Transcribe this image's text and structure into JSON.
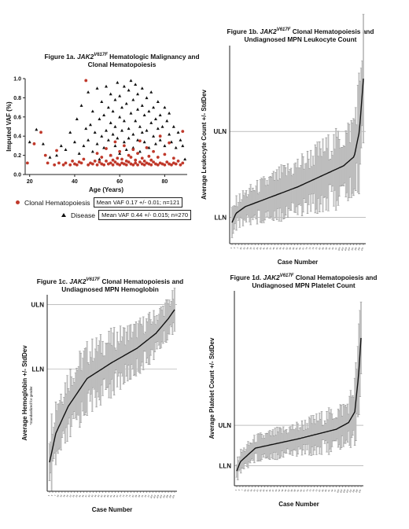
{
  "figures": {
    "fig1a": {
      "title_prefix": "Figure 1a. ",
      "gene": "JAK2",
      "variant": "V617F",
      "title_rest": " Hematologic Malignancy and Clonal Hematopoiesis"
    },
    "fig1b": {
      "title_prefix": "Figure 1b. ",
      "gene": "JAK2",
      "variant": "V617F",
      "title_rest": " Clonal Hematopoiesis and Undiagnosed MPN Leukocyte Count"
    },
    "fig1c": {
      "title_prefix": "Figure 1c. ",
      "gene": "JAK2",
      "variant": "V617F",
      "title_rest": " Clonal Hematopoiesis and Undiagnosed MPN Hemoglobin"
    },
    "fig1d": {
      "title_prefix": "Figure 1d. ",
      "gene": "JAK2",
      "variant": "V617F",
      "title_rest": " Clonal Hematopoiesis and Undiagnosed MPN Platelet Count"
    }
  },
  "legend": {
    "clonal": {
      "label": "Clonal Hematopoiesis",
      "stats": "Mean VAF 0.17 +/- 0.01; n=121"
    },
    "disease": {
      "label": "Disease",
      "stats": "Mean VAF 0.44 +/- 0.015; n=270"
    }
  },
  "colors": {
    "clonal": "#c0392b",
    "disease": "#111111",
    "bar": "#bdbdbd",
    "line": "#111111"
  },
  "chart_data": [
    {
      "id": "fig1a",
      "type": "scatter",
      "xlabel": "Age (Years)",
      "ylabel": "Imputed VAF (%)",
      "xlim": [
        18,
        90
      ],
      "ylim": [
        0,
        1.0
      ],
      "xticks": [
        20,
        40,
        60,
        80
      ],
      "yticks": [
        "0.0",
        "0.2",
        "0.4",
        "0.6",
        "0.8",
        "1.0"
      ],
      "series": [
        {
          "name": "Clonal Hematopoiesis",
          "points": [
            [
              19,
              0.12
            ],
            [
              22,
              0.32
            ],
            [
              25,
              0.44
            ],
            [
              27,
              0.2
            ],
            [
              28,
              0.12
            ],
            [
              31,
              0.1
            ],
            [
              32,
              0.25
            ],
            [
              33,
              0.12
            ],
            [
              35,
              0.1
            ],
            [
              36,
              0.12
            ],
            [
              38,
              0.1
            ],
            [
              39,
              0.14
            ],
            [
              40,
              0.11
            ],
            [
              41,
              0.1
            ],
            [
              42,
              0.13
            ],
            [
              43,
              0.12
            ],
            [
              44,
              0.16
            ],
            [
              45,
              0.98
            ],
            [
              46,
              0.1
            ],
            [
              47,
              0.12
            ],
            [
              48,
              0.11
            ],
            [
              49,
              0.14
            ],
            [
              50,
              0.1
            ],
            [
              50,
              0.22
            ],
            [
              51,
              0.13
            ],
            [
              52,
              0.11
            ],
            [
              52,
              0.18
            ],
            [
              53,
              0.1
            ],
            [
              54,
              0.14
            ],
            [
              54,
              0.27
            ],
            [
              55,
              0.11
            ],
            [
              56,
              0.12
            ],
            [
              56,
              0.2
            ],
            [
              57,
              0.1
            ],
            [
              57,
              0.15
            ],
            [
              58,
              0.13
            ],
            [
              58,
              0.34
            ],
            [
              59,
              0.11
            ],
            [
              59,
              0.17
            ],
            [
              60,
              0.1
            ],
            [
              60,
              0.24
            ],
            [
              61,
              0.12
            ],
            [
              61,
              0.16
            ],
            [
              62,
              0.11
            ],
            [
              62,
              0.3
            ],
            [
              63,
              0.1
            ],
            [
              63,
              0.14
            ],
            [
              64,
              0.13
            ],
            [
              64,
              0.2
            ],
            [
              65,
              0.11
            ],
            [
              65,
              0.18
            ],
            [
              66,
              0.1
            ],
            [
              66,
              0.26
            ],
            [
              67,
              0.12
            ],
            [
              67,
              0.15
            ],
            [
              68,
              0.1
            ],
            [
              68,
              0.22
            ],
            [
              69,
              0.13
            ],
            [
              69,
              0.35
            ],
            [
              70,
              0.11
            ],
            [
              70,
              0.17
            ],
            [
              71,
              0.1
            ],
            [
              71,
              0.14
            ],
            [
              72,
              0.12
            ],
            [
              72,
              0.28
            ],
            [
              73,
              0.11
            ],
            [
              73,
              0.19
            ],
            [
              74,
              0.1
            ],
            [
              74,
              0.15
            ],
            [
              75,
              0.13
            ],
            [
              75,
              0.24
            ],
            [
              76,
              0.11
            ],
            [
              77,
              0.1
            ],
            [
              77,
              0.18
            ],
            [
              78,
              0.12
            ],
            [
              78,
              0.4
            ],
            [
              79,
              0.11
            ],
            [
              80,
              0.1
            ],
            [
              80,
              0.21
            ],
            [
              81,
              0.13
            ],
            [
              82,
              0.11
            ],
            [
              82,
              0.33
            ],
            [
              83,
              0.1
            ],
            [
              84,
              0.12
            ],
            [
              84,
              0.17
            ],
            [
              85,
              0.11
            ],
            [
              86,
              0.14
            ],
            [
              87,
              0.1
            ],
            [
              88,
              0.45
            ],
            [
              88,
              0.12
            ]
          ]
        },
        {
          "name": "Disease",
          "points": [
            [
              20,
              0.34
            ],
            [
              23,
              0.47
            ],
            [
              26,
              0.32
            ],
            [
              29,
              0.18
            ],
            [
              32,
              0.2
            ],
            [
              34,
              0.3
            ],
            [
              36,
              0.26
            ],
            [
              38,
              0.44
            ],
            [
              40,
              0.34
            ],
            [
              41,
              0.58
            ],
            [
              42,
              0.22
            ],
            [
              43,
              0.72
            ],
            [
              44,
              0.3
            ],
            [
              45,
              0.48
            ],
            [
              46,
              0.86
            ],
            [
              46,
              0.36
            ],
            [
              47,
              0.52
            ],
            [
              48,
              0.24
            ],
            [
              48,
              0.66
            ],
            [
              49,
              0.44
            ],
            [
              50,
              0.9
            ],
            [
              50,
              0.32
            ],
            [
              51,
              0.58
            ],
            [
              51,
              0.16
            ],
            [
              52,
              0.76
            ],
            [
              52,
              0.4
            ],
            [
              53,
              0.28
            ],
            [
              53,
              0.62
            ],
            [
              54,
              0.92
            ],
            [
              54,
              0.46
            ],
            [
              55,
              0.36
            ],
            [
              55,
              0.7
            ],
            [
              56,
              0.2
            ],
            [
              56,
              0.54
            ],
            [
              56,
              0.84
            ],
            [
              57,
              0.42
            ],
            [
              57,
              0.66
            ],
            [
              58,
              0.3
            ],
            [
              58,
              0.78
            ],
            [
              58,
              0.5
            ],
            [
              59,
              0.96
            ],
            [
              59,
              0.38
            ],
            [
              60,
              0.6
            ],
            [
              60,
              0.22
            ],
            [
              60,
              0.82
            ],
            [
              61,
              0.46
            ],
            [
              61,
              0.7
            ],
            [
              62,
              0.34
            ],
            [
              62,
              0.92
            ],
            [
              62,
              0.56
            ],
            [
              63,
              0.26
            ],
            [
              63,
              0.74
            ],
            [
              64,
              0.48
            ],
            [
              64,
              0.88
            ],
            [
              64,
              0.38
            ],
            [
              65,
              0.64
            ],
            [
              65,
              0.98
            ],
            [
              66,
              0.42
            ],
            [
              66,
              0.78
            ],
            [
              66,
              0.28
            ],
            [
              67,
              0.56
            ],
            [
              67,
              0.94
            ],
            [
              68,
              0.36
            ],
            [
              68,
              0.68
            ],
            [
              68,
              0.84
            ],
            [
              69,
              0.5
            ],
            [
              69,
              0.24
            ],
            [
              70,
              0.72
            ],
            [
              70,
              0.44
            ],
            [
              70,
              0.9
            ],
            [
              71,
              0.34
            ],
            [
              71,
              0.62
            ],
            [
              72,
              0.8
            ],
            [
              72,
              0.46
            ],
            [
              73,
              0.28
            ],
            [
              73,
              0.66
            ],
            [
              74,
              0.54
            ],
            [
              74,
              0.86
            ],
            [
              75,
              0.4
            ],
            [
              75,
              0.7
            ],
            [
              76,
              0.32
            ],
            [
              76,
              0.58
            ],
            [
              77,
              0.76
            ],
            [
              77,
              0.48
            ],
            [
              78,
              0.36
            ],
            [
              78,
              0.62
            ],
            [
              79,
              0.5
            ],
            [
              80,
              0.7
            ],
            [
              80,
              0.3
            ],
            [
              81,
              0.56
            ],
            [
              82,
              0.42
            ],
            [
              82,
              0.64
            ],
            [
              83,
              0.34
            ],
            [
              84,
              0.5
            ],
            [
              85,
              0.28
            ],
            [
              86,
              0.44
            ],
            [
              87,
              0.36
            ],
            [
              88,
              0.3
            ],
            [
              89,
              0.16
            ]
          ]
        }
      ]
    },
    {
      "id": "fig1b",
      "type": "line",
      "xlabel": "Case Number",
      "ylabel": "Average Leukocyte Count +/- StdDev",
      "reference_lines": [
        {
          "label": "ULN",
          "value": 10.5
        },
        {
          "label": "LLN",
          "value": 4.0
        }
      ],
      "ylim": [
        2,
        17
      ],
      "n_cases": 121,
      "mean_profile": [
        [
          0,
          3.6
        ],
        [
          0.03,
          4.3
        ],
        [
          0.1,
          4.8
        ],
        [
          0.5,
          6.3
        ],
        [
          0.85,
          7.9
        ],
        [
          0.93,
          8.6
        ],
        [
          0.97,
          10.5
        ],
        [
          1.0,
          14.5
        ]
      ],
      "sd_profile": [
        [
          0,
          0.8
        ],
        [
          0.5,
          1.6
        ],
        [
          0.9,
          2.2
        ],
        [
          1.0,
          3.8
        ]
      ]
    },
    {
      "id": "fig1c",
      "type": "line",
      "xlabel": "Case Number",
      "ylabel": "Average Hemoglobin +/- StdDev",
      "ylabel_sub": "*standardized for gender",
      "reference_lines": [
        {
          "label": "ULN",
          "value": 1.0
        },
        {
          "label": "LLN",
          "value": 0.0
        }
      ],
      "ylim": [
        -1.9,
        1.15
      ],
      "n_cases": 121,
      "mean_profile": [
        [
          0,
          -1.45
        ],
        [
          0.05,
          -1.0
        ],
        [
          0.15,
          -0.58
        ],
        [
          0.3,
          -0.15
        ],
        [
          0.5,
          0.1
        ],
        [
          0.7,
          0.32
        ],
        [
          0.85,
          0.55
        ],
        [
          0.95,
          0.78
        ],
        [
          1.0,
          0.92
        ]
      ],
      "sd_profile": [
        [
          0,
          0.45
        ],
        [
          0.5,
          0.35
        ],
        [
          1.0,
          0.22
        ]
      ]
    },
    {
      "id": "fig1d",
      "type": "line",
      "xlabel": "Case Number",
      "ylabel": "Average Platelet Count +/- StdDev",
      "reference_lines": [
        {
          "label": "ULN",
          "value": 450
        },
        {
          "label": "LLN",
          "value": 150
        }
      ],
      "ylim": [
        0,
        1450
      ],
      "n_cases": 121,
      "mean_profile": [
        [
          0,
          110
        ],
        [
          0.03,
          180
        ],
        [
          0.15,
          280
        ],
        [
          0.5,
          350
        ],
        [
          0.8,
          420
        ],
        [
          0.9,
          470
        ],
        [
          0.95,
          550
        ],
        [
          0.98,
          820
        ],
        [
          1.0,
          1100
        ]
      ],
      "sd_profile": [
        [
          0,
          60
        ],
        [
          0.5,
          90
        ],
        [
          0.9,
          130
        ],
        [
          1.0,
          260
        ]
      ]
    }
  ]
}
